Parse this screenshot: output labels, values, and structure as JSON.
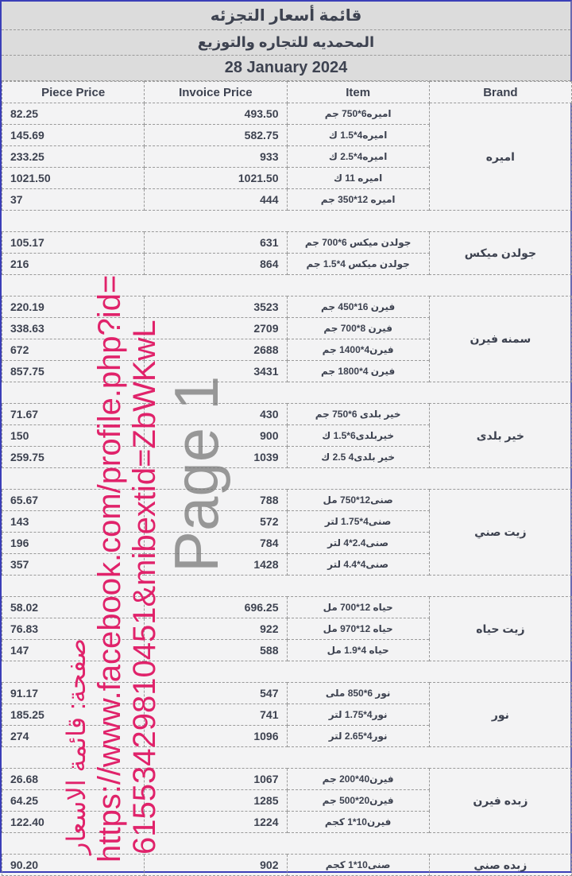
{
  "header": {
    "title": "قائمة أسعار التجزئه",
    "company": "المحمديه للتجاره والتوزيع",
    "date": "28 January 2024"
  },
  "columns": [
    "Piece Price",
    "Invoice Price",
    "Item",
    "Brand"
  ],
  "groups": [
    {
      "brand": "اميره",
      "rows": [
        {
          "item": "اميره6*750 جم",
          "invoice": "493.50",
          "piece": "82.25"
        },
        {
          "item": "اميره4*1.5 ك",
          "invoice": "582.75",
          "piece": "145.69"
        },
        {
          "item": "اميره4*2.5 ك",
          "invoice": "933",
          "piece": "233.25"
        },
        {
          "item": "اميره 11 ك",
          "invoice": "1021.50",
          "piece": "1021.50"
        },
        {
          "item": "اميره 12*350 جم",
          "invoice": "444",
          "piece": "37"
        }
      ]
    },
    {
      "brand": "جولدن ميكس",
      "rows": [
        {
          "item": "جولدن ميكس 6*700 جم",
          "invoice": "631",
          "piece": "105.17"
        },
        {
          "item": "جولدن ميكس 4*1.5 جم",
          "invoice": "864",
          "piece": "216"
        }
      ]
    },
    {
      "brand": "سمنه فيرن",
      "rows": [
        {
          "item": "فيرن 16*450 جم",
          "invoice": "3523",
          "piece": "220.19"
        },
        {
          "item": "فيرن 8*700 جم",
          "invoice": "2709",
          "piece": "338.63"
        },
        {
          "item": "فيرن4*1400 جم",
          "invoice": "2688",
          "piece": "672"
        },
        {
          "item": "فيرن 4*1800 جم",
          "invoice": "3431",
          "piece": "857.75"
        }
      ]
    },
    {
      "brand": "خير بلدى",
      "rows": [
        {
          "item": "خير بلدى 6*750 جم",
          "invoice": "430",
          "piece": "71.67"
        },
        {
          "item": "خيربلدى6*1.5 ك",
          "invoice": "900",
          "piece": "150"
        },
        {
          "item": "خير بلدى4 2.5 ك",
          "invoice": "1039",
          "piece": "259.75"
        }
      ]
    },
    {
      "brand": "زيت صني",
      "rows": [
        {
          "item": "صنى12*750 مل",
          "invoice": "788",
          "piece": "65.67"
        },
        {
          "item": "صنى4*1.75 لتر",
          "invoice": "572",
          "piece": "143"
        },
        {
          "item": "صنى2.4*4 لتر",
          "invoice": "784",
          "piece": "196"
        },
        {
          "item": "صنى4*4.4 لتر",
          "invoice": "1428",
          "piece": "357"
        }
      ]
    },
    {
      "brand": "زيت حياه",
      "rows": [
        {
          "item": "حياه 12*700 مل",
          "invoice": "696.25",
          "piece": "58.02"
        },
        {
          "item": "حياه 12*970 مل",
          "invoice": "922",
          "piece": "76.83"
        },
        {
          "item": "حياه 4*1.9 مل",
          "invoice": "588",
          "piece": "147"
        }
      ]
    },
    {
      "brand": "نور",
      "rows": [
        {
          "item": "نور 6*850 ملى",
          "invoice": "547",
          "piece": "91.17"
        },
        {
          "item": "نور4*1.75 لتر",
          "invoice": "741",
          "piece": "185.25"
        },
        {
          "item": "نور4*2.65 لتر",
          "invoice": "1096",
          "piece": "274"
        }
      ]
    },
    {
      "brand": "زبده فيرن",
      "rows": [
        {
          "item": "فيرن40*200 جم",
          "invoice": "1067",
          "piece": "26.68"
        },
        {
          "item": "فيرن20*500 جم",
          "invoice": "1285",
          "piece": "64.25"
        },
        {
          "item": "فيرن10*1 كجم",
          "invoice": "1224",
          "piece": "122.40"
        }
      ]
    },
    {
      "brand": "زبده صني",
      "rows": [
        {
          "item": "صنى10*1 كجم",
          "invoice": "902",
          "piece": "90.20"
        }
      ]
    }
  ],
  "watermarks": {
    "page": "Page 1",
    "url_line1": "https://www.facebook.com/profile.php?id=",
    "url_line2": "61553429810451&mibextid=ZbWKwL",
    "page_name": "صفحة: قائمة الاسعار"
  },
  "colors": {
    "header_bg": "#dcdcdc",
    "watermark_pink": "#e0226a",
    "border_blue": "#3b3fb8"
  }
}
